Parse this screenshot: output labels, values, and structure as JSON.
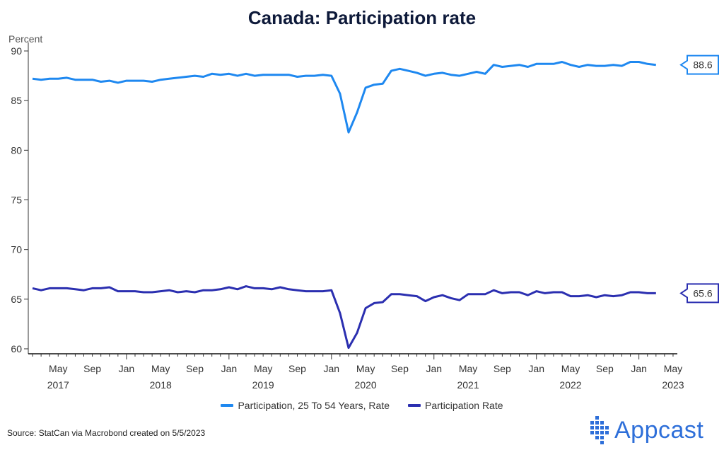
{
  "colors": {
    "series1": "#1e88f0",
    "series2": "#2b2fb0",
    "title": "#0e1a3a",
    "brand": "#2e6fd9"
  },
  "logo": {
    "text": "Appcast",
    "icon": "dotted-grid-icon"
  },
  "source": "Source: StatCan via Macrobond created on 5/5/2023",
  "chart_data": {
    "type": "line",
    "title": "Canada: Participation rate",
    "ylabel": "Percent",
    "xlabel": "",
    "ylim": [
      59.5,
      90.5
    ],
    "yticks": [
      60,
      65,
      70,
      75,
      80,
      85,
      90
    ],
    "x_start": "2017-02",
    "x_end": "2023-04",
    "xticks": [
      {
        "month": "2017-05",
        "label": "May",
        "year": "2017"
      },
      {
        "month": "2017-09",
        "label": "Sep",
        "year": ""
      },
      {
        "month": "2018-01",
        "label": "Jan",
        "year": ""
      },
      {
        "month": "2018-05",
        "label": "May",
        "year": "2018"
      },
      {
        "month": "2018-09",
        "label": "Sep",
        "year": ""
      },
      {
        "month": "2019-01",
        "label": "Jan",
        "year": ""
      },
      {
        "month": "2019-05",
        "label": "May",
        "year": "2019"
      },
      {
        "month": "2019-09",
        "label": "Sep",
        "year": ""
      },
      {
        "month": "2020-01",
        "label": "Jan",
        "year": ""
      },
      {
        "month": "2020-05",
        "label": "May",
        "year": "2020"
      },
      {
        "month": "2020-09",
        "label": "Sep",
        "year": ""
      },
      {
        "month": "2021-01",
        "label": "Jan",
        "year": ""
      },
      {
        "month": "2021-05",
        "label": "May",
        "year": "2021"
      },
      {
        "month": "2021-09",
        "label": "Sep",
        "year": ""
      },
      {
        "month": "2022-01",
        "label": "Jan",
        "year": ""
      },
      {
        "month": "2022-05",
        "label": "May",
        "year": "2022"
      },
      {
        "month": "2022-09",
        "label": "Sep",
        "year": ""
      },
      {
        "month": "2023-01",
        "label": "Jan",
        "year": ""
      },
      {
        "month": "2023-05",
        "label": "May",
        "year": "2023"
      }
    ],
    "series": [
      {
        "name": "Participation, 25 To 54 Years, Rate",
        "last_value_label": "88.6",
        "values": [
          87.2,
          87.1,
          87.2,
          87.2,
          87.3,
          87.1,
          87.1,
          87.1,
          86.9,
          87.0,
          86.8,
          87.0,
          87.0,
          87.0,
          86.9,
          87.1,
          87.2,
          87.3,
          87.4,
          87.5,
          87.4,
          87.7,
          87.6,
          87.7,
          87.5,
          87.7,
          87.5,
          87.6,
          87.6,
          87.6,
          87.6,
          87.4,
          87.5,
          87.5,
          87.6,
          87.5,
          85.7,
          81.8,
          83.8,
          86.3,
          86.6,
          86.7,
          88.0,
          88.2,
          88.0,
          87.8,
          87.5,
          87.7,
          87.8,
          87.6,
          87.5,
          87.7,
          87.9,
          87.7,
          88.6,
          88.4,
          88.5,
          88.6,
          88.4,
          88.7,
          88.7,
          88.7,
          88.9,
          88.6,
          88.4,
          88.6,
          88.5,
          88.5,
          88.6,
          88.5,
          88.9,
          88.9,
          88.7,
          88.6
        ]
      },
      {
        "name": "Participation Rate",
        "last_value_label": "65.6",
        "values": [
          66.1,
          65.9,
          66.1,
          66.1,
          66.1,
          66.0,
          65.9,
          66.1,
          66.1,
          66.2,
          65.8,
          65.8,
          65.8,
          65.7,
          65.7,
          65.8,
          65.9,
          65.7,
          65.8,
          65.7,
          65.9,
          65.9,
          66.0,
          66.2,
          66.0,
          66.3,
          66.1,
          66.1,
          66.0,
          66.2,
          66.0,
          65.9,
          65.8,
          65.8,
          65.8,
          65.9,
          63.6,
          60.1,
          61.6,
          64.1,
          64.6,
          64.7,
          65.5,
          65.5,
          65.4,
          65.3,
          64.8,
          65.2,
          65.4,
          65.1,
          64.9,
          65.5,
          65.5,
          65.5,
          65.9,
          65.6,
          65.7,
          65.7,
          65.4,
          65.8,
          65.6,
          65.7,
          65.7,
          65.3,
          65.3,
          65.4,
          65.2,
          65.4,
          65.3,
          65.4,
          65.7,
          65.7,
          65.6,
          65.6
        ]
      }
    ]
  }
}
